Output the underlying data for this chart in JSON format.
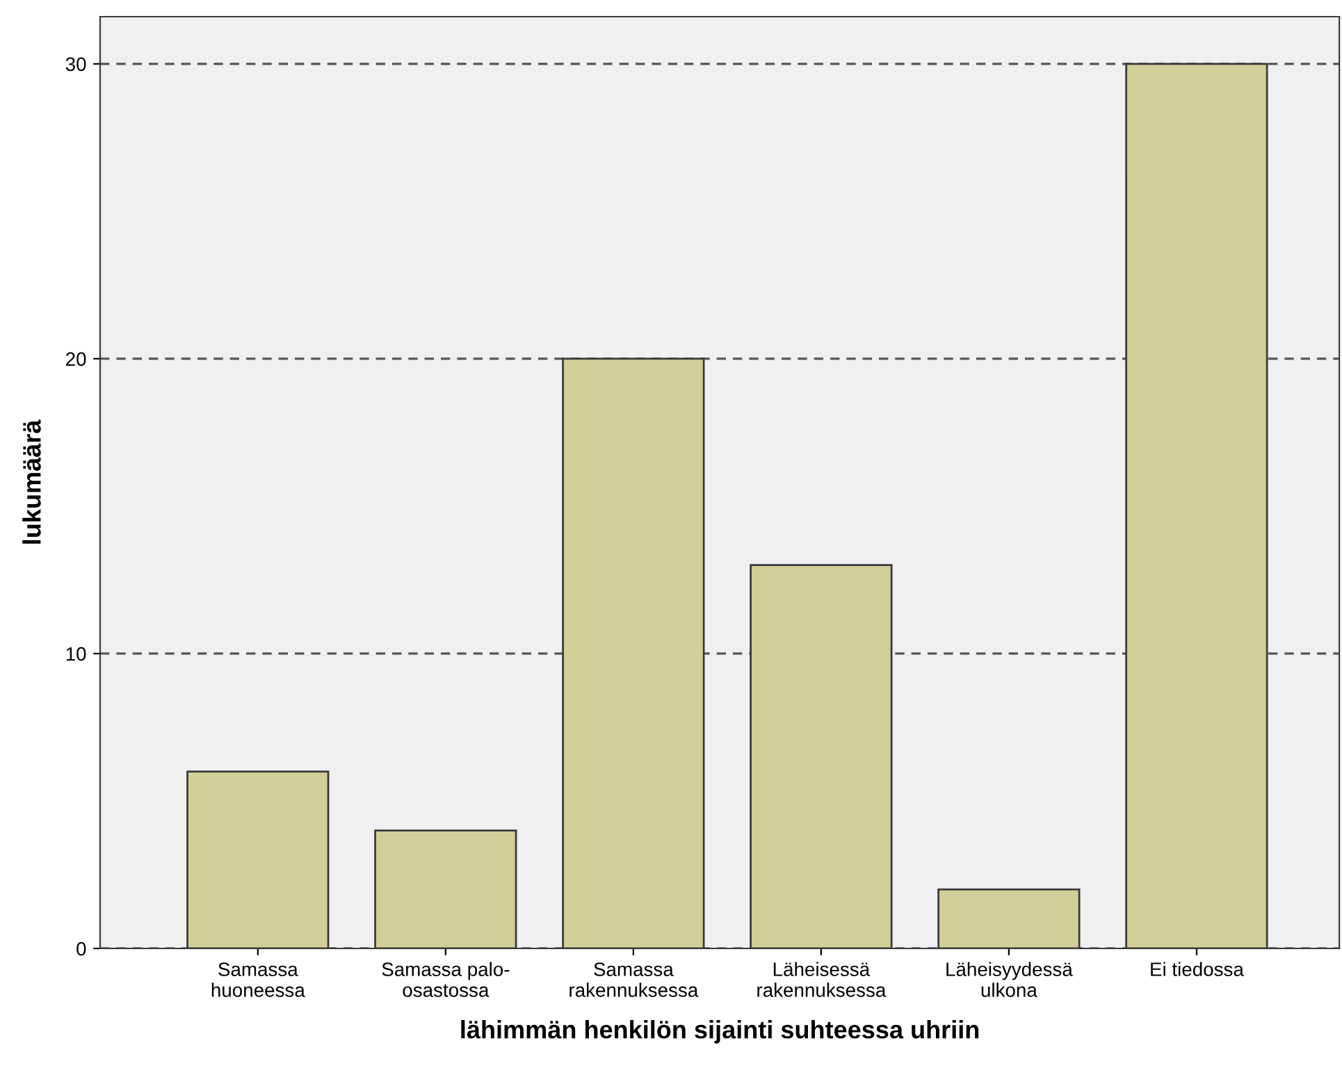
{
  "chart_data": {
    "type": "bar",
    "xlabel": "lähimmän henkilön sijainti suhteessa uhriin",
    "ylabel": "lukumäärä",
    "categories": [
      "Samassa\nhuoneessa",
      "Samassa palo-\nosastossa",
      "Samassa\nrakennuksessa",
      "Läheisessä\nrakennuksessa",
      "Läheisyydessä\nulkona",
      "Ei tiedossa"
    ],
    "values": [
      6,
      4,
      20,
      13,
      2,
      30
    ],
    "color": "#d3ce97",
    "ylim": [
      0,
      31.6
    ],
    "yticks": [
      0,
      10,
      20,
      30
    ],
    "grid": "y"
  }
}
